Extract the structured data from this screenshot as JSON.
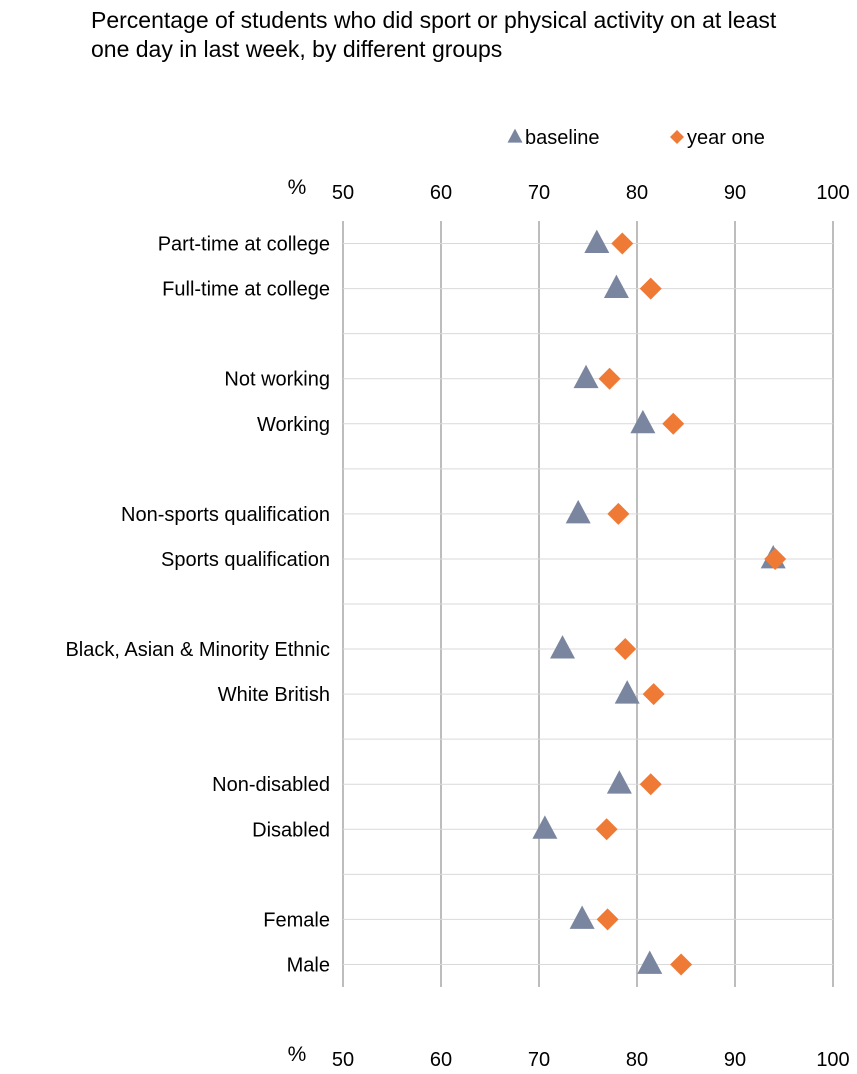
{
  "chart_data": {
    "type": "scatter",
    "title": "Percentage of students who did sport or physical activity on at least one day in last week, by different groups",
    "axis_unit_label": "%",
    "xlim": [
      50,
      100
    ],
    "x_ticks": [
      "50",
      "60",
      "70",
      "80",
      "90",
      "100"
    ],
    "grid": true,
    "legend_position": "top",
    "categories": [
      "Part-time at college",
      "Full-time at college",
      "",
      "Not working",
      "Working",
      "",
      "Non-sports qualification",
      "Sports qualification",
      "",
      "Black, Asian & Minority Ethnic",
      "White British",
      "",
      "Non-disabled",
      "Disabled",
      "",
      "Female",
      "Male"
    ],
    "series": [
      {
        "name": "baseline",
        "marker": "triangle",
        "color": "#7a869f",
        "values": [
          75.9,
          77.9,
          null,
          74.8,
          80.6,
          null,
          74.0,
          93.9,
          null,
          72.4,
          79.0,
          null,
          78.2,
          70.6,
          null,
          74.4,
          81.3
        ]
      },
      {
        "name": "year one",
        "marker": "diamond",
        "color": "#ef7a35",
        "values": [
          78.5,
          81.4,
          null,
          77.2,
          83.7,
          null,
          78.1,
          94.1,
          null,
          78.8,
          81.7,
          null,
          81.4,
          76.9,
          null,
          77.0,
          84.5
        ]
      }
    ]
  }
}
